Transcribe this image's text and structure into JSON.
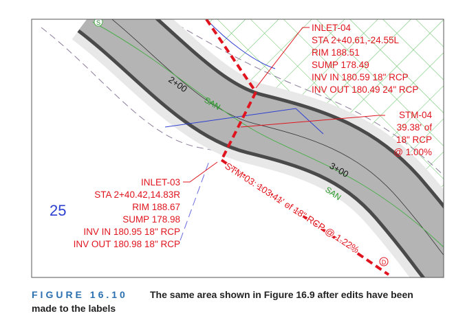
{
  "drawing": {
    "inlet_04": [
      "INLET-04",
      "STA 2+40.61,-24.55L",
      "RIM 188.51",
      "SUMP 178.49",
      "INV IN 180.59 18\" RCP",
      "INV OUT 180.49 24\" RCP"
    ],
    "stm_04": [
      "STM-04",
      "39.38' of",
      "18\" RCP",
      "@ 1.00%"
    ],
    "inlet_03": [
      "INLET-03",
      "STA 2+40.42,14.83R",
      "RIM 188.67",
      "SUMP 178.98",
      "INV IN 180.95 18\" RCP",
      "INV OUT 180.98 18\" RCP"
    ],
    "stm_03": "STM-03: 103.41' of 18\" RCP @ 1.22%",
    "stations": [
      "2+00",
      "3+00"
    ],
    "san_labels": [
      "SAN",
      "SAN"
    ],
    "lot_number": "25",
    "manhole_s": "S",
    "manhole_d": "D"
  },
  "caption": {
    "label": "FIGURE 16.10",
    "lines": [
      "The same area shown in Figure 16.9 after edits have been",
      "made to the labels"
    ]
  }
}
